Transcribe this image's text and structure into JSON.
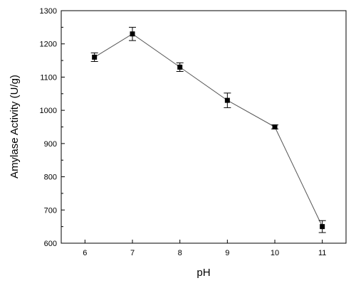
{
  "chart_data": {
    "type": "line",
    "xlabel": "pH",
    "ylabel": "Amylase Activity (U/g)",
    "xlim": [
      5.5,
      11.5
    ],
    "ylim": [
      600,
      1300
    ],
    "x_ticks": [
      6,
      7,
      8,
      9,
      10,
      11
    ],
    "y_ticks": [
      600,
      700,
      800,
      900,
      1000,
      1100,
      1200,
      1300
    ],
    "grid": false,
    "legend": "none",
    "series": [
      {
        "x": [
          6.2,
          7,
          8,
          9,
          10,
          11
        ],
        "y": [
          1160,
          1230,
          1130,
          1030,
          950,
          650
        ],
        "error": [
          13,
          20,
          13,
          22,
          6,
          18
        ],
        "marker": "square",
        "line_color": "#555555",
        "marker_color": "#000000"
      }
    ]
  }
}
